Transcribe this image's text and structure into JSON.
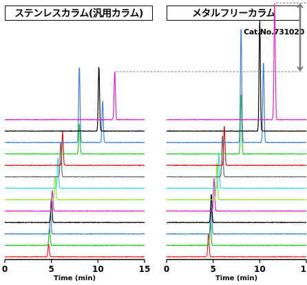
{
  "panels": [
    {
      "title": "ステンレスカラム(汎用カラム)"
    },
    {
      "title": "メタルフリーカラム",
      "catalog_no": "Cat.No.731020"
    }
  ],
  "colors": {
    "traces": [
      "#ee2020",
      "#22bb22",
      "#3a7fdc",
      "#000000",
      "#dd22cc",
      "#88ee22",
      "#33dddd",
      "#666666",
      "#dd1111",
      "#22cc22",
      "#3a7fdc",
      "#000000",
      "#dd22cc"
    ],
    "annotation": "#777777"
  },
  "chart_data": [
    {
      "type": "line",
      "title": "ステンレスカラム(汎用カラム)",
      "xlabel": "Time (min)",
      "ylabel": "",
      "xlim": [
        0,
        15
      ],
      "xticks": [
        0,
        5,
        10,
        15
      ],
      "grid": false,
      "series": [
        {
          "peaks": [
            {
              "t": 4.7,
              "h": 0.55
            }
          ]
        },
        {
          "peaks": [
            {
              "t": 4.8,
              "h": 0.75
            }
          ]
        },
        {
          "peaks": [
            {
              "t": 4.9,
              "h": 0.85
            }
          ]
        },
        {
          "peaks": [
            {
              "t": 5.0,
              "h": 1.0
            }
          ]
        },
        {
          "peaks": [
            {
              "t": 5.1,
              "h": 0.9
            }
          ]
        },
        {
          "peaks": [
            {
              "t": 5.4,
              "h": 1.0
            }
          ]
        },
        {
          "peaks": [
            {
              "t": 5.7,
              "h": 1.3
            }
          ]
        },
        {
          "peaks": [
            {
              "t": 6.0,
              "h": 1.5
            }
          ]
        },
        {
          "peaks": [
            {
              "t": 6.2,
              "h": 1.45
            }
          ]
        },
        {
          "peaks": [
            {
              "t": 8.0,
              "h": 1.3
            }
          ]
        },
        {
          "peaks": [
            {
              "t": 8.0,
              "h": 3.3
            },
            {
              "t": 10.5,
              "h": 1.8
            }
          ]
        },
        {
          "peaks": [
            {
              "t": 10.1,
              "h": 2.8
            }
          ]
        },
        {
          "peaks": [
            {
              "t": 11.8,
              "h": 2.1
            }
          ]
        }
      ]
    },
    {
      "type": "line",
      "title": "メタルフリーカラム",
      "xlabel": "Time (min)",
      "ylabel": "",
      "xlim": [
        0,
        15
      ],
      "xticks": [
        0,
        5,
        10,
        15
      ],
      "grid": false,
      "series": [
        {
          "peaks": [
            {
              "t": 4.5,
              "h": 1.0
            }
          ]
        },
        {
          "peaks": [
            {
              "t": 4.7,
              "h": 1.15
            }
          ]
        },
        {
          "peaks": [
            {
              "t": 4.8,
              "h": 1.1
            }
          ]
        },
        {
          "peaks": [
            {
              "t": 4.8,
              "h": 1.2
            }
          ]
        },
        {
          "peaks": [
            {
              "t": 5.1,
              "h": 1.4
            }
          ]
        },
        {
          "peaks": [
            {
              "t": 5.4,
              "h": 1.6
            }
          ]
        },
        {
          "peaks": [
            {
              "t": 5.6,
              "h": 1.5
            }
          ]
        },
        {
          "peaks": [
            {
              "t": 6.0,
              "h": 1.8
            }
          ]
        },
        {
          "peaks": [
            {
              "t": 6.2,
              "h": 1.7
            }
          ]
        },
        {
          "peaks": [
            {
              "t": 8.0,
              "h": 2.6
            }
          ]
        },
        {
          "peaks": [
            {
              "t": 8.0,
              "h": 5.0
            },
            {
              "t": 10.4,
              "h": 3.5
            }
          ]
        },
        {
          "peaks": [
            {
              "t": 10.0,
              "h": 4.8
            }
          ]
        },
        {
          "peaks": [
            {
              "t": 11.6,
              "h": 5.0
            }
          ]
        }
      ]
    }
  ]
}
